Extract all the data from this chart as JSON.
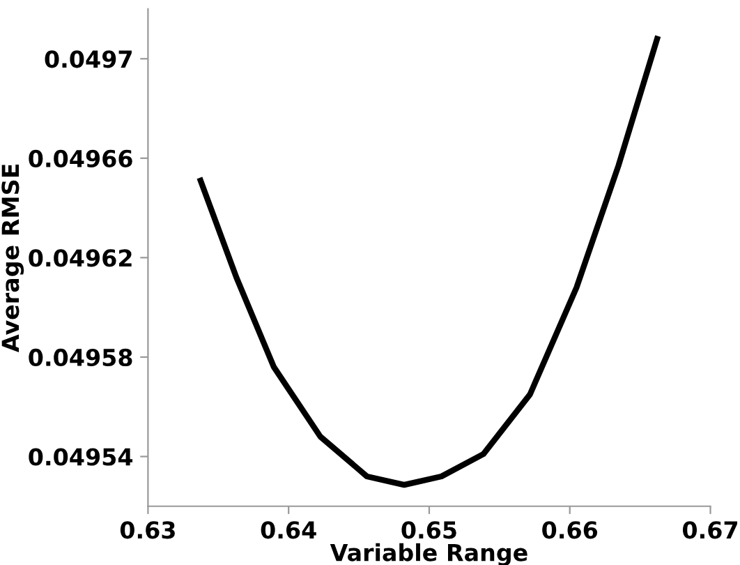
{
  "chart_data": {
    "type": "line",
    "xlabel": "Variable Range",
    "ylabel": "Average RMSE",
    "x": [
      0.63374,
      0.63629,
      0.63895,
      0.64226,
      0.64557,
      0.64822,
      0.65087,
      0.65386,
      0.65717,
      0.66048,
      0.66346,
      0.66621
    ],
    "series": [
      {
        "color": "#000000",
        "values": [
          0.049651,
          0.049612,
          0.049576,
          0.049548,
          0.049532,
          0.0495286,
          0.049532,
          0.049541,
          0.049565,
          0.049608,
          0.049657,
          0.049708
        ]
      }
    ],
    "xlim": [
      0.63,
      0.67
    ],
    "xticks": [
      0.63,
      0.64,
      0.65,
      0.66,
      0.67
    ],
    "ylim": [
      0.04952,
      0.04972
    ],
    "yticks": [
      0.04954,
      0.04958,
      0.04962,
      0.04966,
      0.0497
    ],
    "grid": false,
    "legend": false,
    "marker": "none",
    "line_style": "solid"
  }
}
